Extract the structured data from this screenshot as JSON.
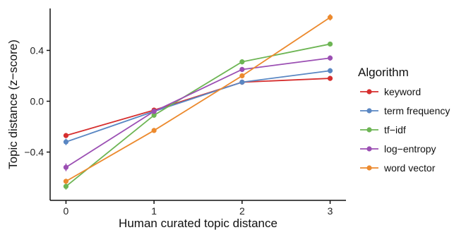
{
  "chart_data": {
    "type": "line",
    "xlabel": "Human curated topic distance",
    "ylabel": "Topic distance (z−score)",
    "x": [
      0,
      1,
      2,
      3
    ],
    "x_ticks": [
      "0",
      "1",
      "2",
      "3"
    ],
    "y_ticks": [
      {
        "value": -0.4,
        "label": "−0.4"
      },
      {
        "value": 0.0,
        "label": "0.0"
      },
      {
        "value": 0.4,
        "label": "0.4"
      }
    ],
    "xlim": [
      -0.18,
      3.18
    ],
    "ylim": [
      -0.78,
      0.73
    ],
    "grid": false,
    "legend": {
      "title": "Algorithm",
      "placement": "right"
    },
    "series": [
      {
        "name": "keyword",
        "color": "#d62f2f",
        "values": [
          -0.27,
          -0.07,
          0.15,
          0.18
        ],
        "errors": [
          0.02,
          0.02,
          0.02,
          0.02
        ]
      },
      {
        "name": "term frequency",
        "color": "#5a87c3",
        "values": [
          -0.32,
          -0.08,
          0.15,
          0.24
        ],
        "errors": [
          0.025,
          0.02,
          0.02,
          0.02
        ]
      },
      {
        "name": "tf−idf",
        "color": "#6db554",
        "values": [
          -0.67,
          -0.11,
          0.31,
          0.45
        ],
        "errors": [
          0.025,
          0.02,
          0.02,
          0.015
        ]
      },
      {
        "name": "log−entropy",
        "color": "#9b4fb3",
        "values": [
          -0.52,
          -0.08,
          0.25,
          0.34
        ],
        "errors": [
          0.03,
          0.02,
          0.02,
          0.02
        ]
      },
      {
        "name": "word vector",
        "color": "#ec8a2e",
        "values": [
          -0.63,
          -0.23,
          0.2,
          0.66
        ],
        "errors": [
          0.02,
          0.02,
          0.02,
          0.025
        ]
      }
    ]
  }
}
